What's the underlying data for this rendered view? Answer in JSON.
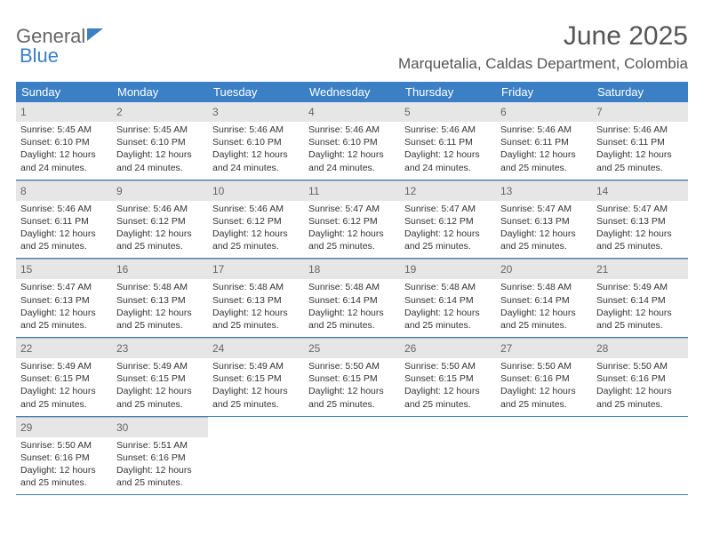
{
  "brand": {
    "part1": "General",
    "part2": "Blue"
  },
  "title": "June 2025",
  "location": "Marquetalia, Caldas Department, Colombia",
  "colors": {
    "accent": "#3b7fc4",
    "dow_text": "#ffffff",
    "daynum_bg": "#e6e6e6",
    "text": "#333333",
    "muted": "#666666",
    "background": "#ffffff"
  },
  "font": {
    "family": "Arial",
    "title_size": 30,
    "location_size": 17,
    "dow_size": 13,
    "daynum_size": 12,
    "body_size": 10.5
  },
  "dow": [
    "Sunday",
    "Monday",
    "Tuesday",
    "Wednesday",
    "Thursday",
    "Friday",
    "Saturday"
  ],
  "days": [
    {
      "n": "1",
      "sunrise": "Sunrise: 5:45 AM",
      "sunset": "Sunset: 6:10 PM",
      "day1": "Daylight: 12 hours",
      "day2": "and 24 minutes."
    },
    {
      "n": "2",
      "sunrise": "Sunrise: 5:45 AM",
      "sunset": "Sunset: 6:10 PM",
      "day1": "Daylight: 12 hours",
      "day2": "and 24 minutes."
    },
    {
      "n": "3",
      "sunrise": "Sunrise: 5:46 AM",
      "sunset": "Sunset: 6:10 PM",
      "day1": "Daylight: 12 hours",
      "day2": "and 24 minutes."
    },
    {
      "n": "4",
      "sunrise": "Sunrise: 5:46 AM",
      "sunset": "Sunset: 6:10 PM",
      "day1": "Daylight: 12 hours",
      "day2": "and 24 minutes."
    },
    {
      "n": "5",
      "sunrise": "Sunrise: 5:46 AM",
      "sunset": "Sunset: 6:11 PM",
      "day1": "Daylight: 12 hours",
      "day2": "and 24 minutes."
    },
    {
      "n": "6",
      "sunrise": "Sunrise: 5:46 AM",
      "sunset": "Sunset: 6:11 PM",
      "day1": "Daylight: 12 hours",
      "day2": "and 25 minutes."
    },
    {
      "n": "7",
      "sunrise": "Sunrise: 5:46 AM",
      "sunset": "Sunset: 6:11 PM",
      "day1": "Daylight: 12 hours",
      "day2": "and 25 minutes."
    },
    {
      "n": "8",
      "sunrise": "Sunrise: 5:46 AM",
      "sunset": "Sunset: 6:11 PM",
      "day1": "Daylight: 12 hours",
      "day2": "and 25 minutes."
    },
    {
      "n": "9",
      "sunrise": "Sunrise: 5:46 AM",
      "sunset": "Sunset: 6:12 PM",
      "day1": "Daylight: 12 hours",
      "day2": "and 25 minutes."
    },
    {
      "n": "10",
      "sunrise": "Sunrise: 5:46 AM",
      "sunset": "Sunset: 6:12 PM",
      "day1": "Daylight: 12 hours",
      "day2": "and 25 minutes."
    },
    {
      "n": "11",
      "sunrise": "Sunrise: 5:47 AM",
      "sunset": "Sunset: 6:12 PM",
      "day1": "Daylight: 12 hours",
      "day2": "and 25 minutes."
    },
    {
      "n": "12",
      "sunrise": "Sunrise: 5:47 AM",
      "sunset": "Sunset: 6:12 PM",
      "day1": "Daylight: 12 hours",
      "day2": "and 25 minutes."
    },
    {
      "n": "13",
      "sunrise": "Sunrise: 5:47 AM",
      "sunset": "Sunset: 6:13 PM",
      "day1": "Daylight: 12 hours",
      "day2": "and 25 minutes."
    },
    {
      "n": "14",
      "sunrise": "Sunrise: 5:47 AM",
      "sunset": "Sunset: 6:13 PM",
      "day1": "Daylight: 12 hours",
      "day2": "and 25 minutes."
    },
    {
      "n": "15",
      "sunrise": "Sunrise: 5:47 AM",
      "sunset": "Sunset: 6:13 PM",
      "day1": "Daylight: 12 hours",
      "day2": "and 25 minutes."
    },
    {
      "n": "16",
      "sunrise": "Sunrise: 5:48 AM",
      "sunset": "Sunset: 6:13 PM",
      "day1": "Daylight: 12 hours",
      "day2": "and 25 minutes."
    },
    {
      "n": "17",
      "sunrise": "Sunrise: 5:48 AM",
      "sunset": "Sunset: 6:13 PM",
      "day1": "Daylight: 12 hours",
      "day2": "and 25 minutes."
    },
    {
      "n": "18",
      "sunrise": "Sunrise: 5:48 AM",
      "sunset": "Sunset: 6:14 PM",
      "day1": "Daylight: 12 hours",
      "day2": "and 25 minutes."
    },
    {
      "n": "19",
      "sunrise": "Sunrise: 5:48 AM",
      "sunset": "Sunset: 6:14 PM",
      "day1": "Daylight: 12 hours",
      "day2": "and 25 minutes."
    },
    {
      "n": "20",
      "sunrise": "Sunrise: 5:48 AM",
      "sunset": "Sunset: 6:14 PM",
      "day1": "Daylight: 12 hours",
      "day2": "and 25 minutes."
    },
    {
      "n": "21",
      "sunrise": "Sunrise: 5:49 AM",
      "sunset": "Sunset: 6:14 PM",
      "day1": "Daylight: 12 hours",
      "day2": "and 25 minutes."
    },
    {
      "n": "22",
      "sunrise": "Sunrise: 5:49 AM",
      "sunset": "Sunset: 6:15 PM",
      "day1": "Daylight: 12 hours",
      "day2": "and 25 minutes."
    },
    {
      "n": "23",
      "sunrise": "Sunrise: 5:49 AM",
      "sunset": "Sunset: 6:15 PM",
      "day1": "Daylight: 12 hours",
      "day2": "and 25 minutes."
    },
    {
      "n": "24",
      "sunrise": "Sunrise: 5:49 AM",
      "sunset": "Sunset: 6:15 PM",
      "day1": "Daylight: 12 hours",
      "day2": "and 25 minutes."
    },
    {
      "n": "25",
      "sunrise": "Sunrise: 5:50 AM",
      "sunset": "Sunset: 6:15 PM",
      "day1": "Daylight: 12 hours",
      "day2": "and 25 minutes."
    },
    {
      "n": "26",
      "sunrise": "Sunrise: 5:50 AM",
      "sunset": "Sunset: 6:15 PM",
      "day1": "Daylight: 12 hours",
      "day2": "and 25 minutes."
    },
    {
      "n": "27",
      "sunrise": "Sunrise: 5:50 AM",
      "sunset": "Sunset: 6:16 PM",
      "day1": "Daylight: 12 hours",
      "day2": "and 25 minutes."
    },
    {
      "n": "28",
      "sunrise": "Sunrise: 5:50 AM",
      "sunset": "Sunset: 6:16 PM",
      "day1": "Daylight: 12 hours",
      "day2": "and 25 minutes."
    },
    {
      "n": "29",
      "sunrise": "Sunrise: 5:50 AM",
      "sunset": "Sunset: 6:16 PM",
      "day1": "Daylight: 12 hours",
      "day2": "and 25 minutes."
    },
    {
      "n": "30",
      "sunrise": "Sunrise: 5:51 AM",
      "sunset": "Sunset: 6:16 PM",
      "day1": "Daylight: 12 hours",
      "day2": "and 25 minutes."
    }
  ]
}
